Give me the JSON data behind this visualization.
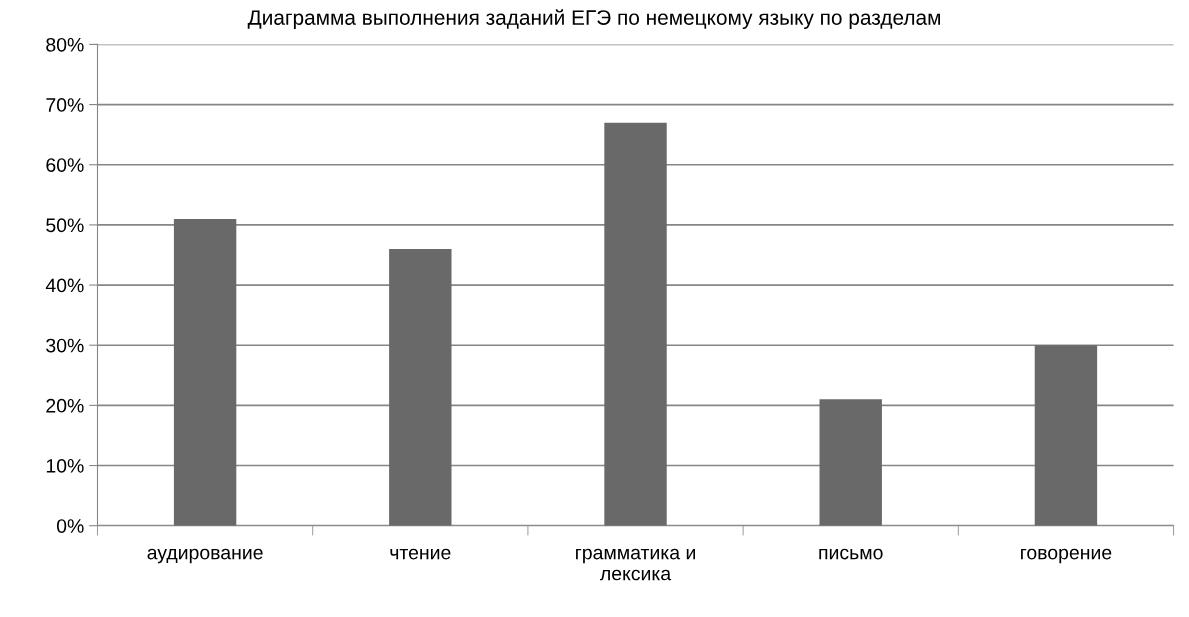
{
  "chart_data": {
    "type": "bar",
    "title": "Диаграмма выполнения заданий ЕГЭ по немецкому языку по разделам",
    "categories": [
      "аудирование",
      "чтение",
      "грамматика и\nлексика",
      "письмо",
      "говорение"
    ],
    "values": [
      51,
      46,
      67,
      21,
      30
    ],
    "color": "#696969",
    "ylim": [
      0,
      80
    ],
    "yticks": [
      {
        "value": 0,
        "label": "0%"
      },
      {
        "value": 10,
        "label": "10%"
      },
      {
        "value": 20,
        "label": "20%"
      },
      {
        "value": 30,
        "label": "30%"
      },
      {
        "value": 40,
        "label": "40%"
      },
      {
        "value": 50,
        "label": "50%"
      },
      {
        "value": 60,
        "label": "60%"
      },
      {
        "value": 70,
        "label": "70%"
      },
      {
        "value": 80,
        "label": "80%"
      }
    ],
    "grid": "y",
    "legend": false
  }
}
